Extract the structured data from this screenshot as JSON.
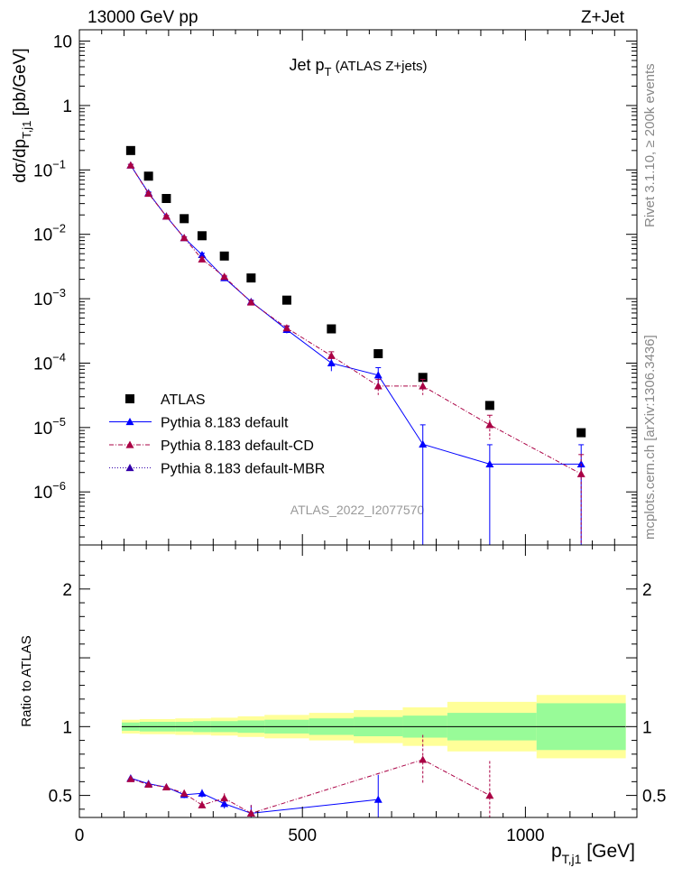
{
  "header": {
    "left": "13000 GeV pp",
    "right": "Z+Jet"
  },
  "side_labels": {
    "rivet": "Rivet 3.1.10, ≥ 200k events",
    "mcplots": "mcplots.cern.ch [arXiv:1306.3436]"
  },
  "chart_data": [
    {
      "type": "scatter",
      "panel": "main",
      "title": "Jet p_T (ATLAS Z+jets)",
      "title_parts": {
        "main": "Jet p",
        "sub": "T",
        "rest": " (ATLAS Z+jets)"
      },
      "watermark": "ATLAS_2022_I2077570",
      "ylabel_parts": {
        "a": "dσ/dp",
        "sub": "T,j1",
        "b": " [pb/GeV]"
      },
      "y_scale": "log",
      "ylim": [
        1.5e-07,
        15
      ],
      "xlim": [
        0,
        1250
      ],
      "y_tick_labels": [
        {
          "v": 10,
          "label": "10"
        },
        {
          "v": 1,
          "label": "1"
        },
        {
          "v": 0.1,
          "label": "10",
          "exp": "−1"
        },
        {
          "v": 0.01,
          "label": "10",
          "exp": "−2"
        },
        {
          "v": 0.001,
          "label": "10",
          "exp": "−3"
        },
        {
          "v": 0.0001,
          "label": "10",
          "exp": "−4"
        },
        {
          "v": 1e-05,
          "label": "10",
          "exp": "−5"
        },
        {
          "v": 1e-06,
          "label": "10",
          "exp": "−6"
        }
      ],
      "legend_position": "bottom-left",
      "series": [
        {
          "name": "ATLAS",
          "style": "data",
          "color": "#000000",
          "x": [
            115,
            155,
            195,
            235,
            275,
            325,
            385,
            465,
            565,
            670,
            770,
            920,
            1125
          ],
          "y": [
            0.2,
            0.08,
            0.036,
            0.0175,
            0.0095,
            0.0046,
            0.0021,
            0.00095,
            0.00034,
            0.00014,
            6e-05,
            2.2e-05,
            8.3e-06
          ]
        },
        {
          "name": "Pythia 8.183 default",
          "style": "solid",
          "color": "#0000ff",
          "x": [
            115,
            155,
            195,
            235,
            275,
            325,
            385,
            465,
            565,
            670,
            770,
            920,
            1125
          ],
          "y": [
            0.118,
            0.044,
            0.019,
            0.0088,
            0.0048,
            0.0021,
            0.0009,
            0.00033,
            0.0001,
            6.5e-05,
            5.5e-06,
            2.7e-06,
            2.7e-06
          ],
          "err": [
            0.004,
            0.0015,
            0.0006,
            0.0003,
            0.0003,
            0.0001,
            5e-05,
            4e-05,
            2.5e-05,
            2e-05,
            5.5e-06,
            2.7e-06,
            2.7e-06
          ]
        },
        {
          "name": "Pythia 8.183 default-CD",
          "style": "dashdot",
          "color": "#aa0044",
          "x": [
            115,
            155,
            195,
            235,
            275,
            325,
            385,
            465,
            565,
            670,
            770,
            920,
            1125
          ],
          "y": [
            0.118,
            0.043,
            0.019,
            0.0088,
            0.0041,
            0.0022,
            0.00088,
            0.00035,
            0.00013,
            4.4e-05,
            4.4e-05,
            1.1e-05,
            1.9e-06
          ],
          "err": [
            0.004,
            0.0015,
            0.0006,
            0.0003,
            0.0003,
            0.0001,
            5e-05,
            3e-05,
            2e-05,
            1.2e-05,
            1.2e-05,
            4.5e-06,
            1.9e-06
          ]
        },
        {
          "name": "Pythia 8.183 default-MBR",
          "style": "dotted",
          "color": "#3300aa",
          "x": [],
          "y": []
        }
      ]
    },
    {
      "type": "scatter",
      "panel": "ratio",
      "ylabel": "Ratio to ATLAS",
      "xlabel_parts": {
        "a": "p",
        "sub": "T,j1",
        "b": " [GeV]"
      },
      "xlim": [
        0,
        1250
      ],
      "ylim": [
        0.34,
        2.32
      ],
      "x_tick_labels": [
        {
          "v": 0,
          "label": "0"
        },
        {
          "v": 500,
          "label": "500"
        },
        {
          "v": 1000,
          "label": "1000"
        }
      ],
      "y_tick_labels": [
        {
          "v": 2,
          "label": "2"
        },
        {
          "v": 1,
          "label": "1"
        },
        {
          "v": 0.5,
          "label": "0.5"
        }
      ],
      "bands": {
        "edges": [
          95,
          135,
          175,
          215,
          255,
          295,
          355,
          415,
          515,
          615,
          725,
          825,
          1025,
          1225
        ],
        "stat": [
          0.03,
          0.035,
          0.035,
          0.035,
          0.04,
          0.04,
          0.045,
          0.05,
          0.06,
          0.07,
          0.08,
          0.1,
          0.17
        ],
        "total": [
          0.05,
          0.055,
          0.055,
          0.06,
          0.06,
          0.065,
          0.075,
          0.085,
          0.1,
          0.12,
          0.14,
          0.18,
          0.23
        ],
        "stat_color": "#98fb98",
        "total_color": "#ffff99"
      },
      "series": [
        {
          "name": "Pythia 8.183 default",
          "color": "#0000ff",
          "x": [
            115,
            155,
            195,
            235,
            275,
            325,
            385,
            670
          ],
          "y": [
            0.625,
            0.585,
            0.56,
            0.505,
            0.515,
            0.44,
            0.37,
            0.47
          ],
          "err": [
            0.015,
            0.02,
            0.02,
            0.025,
            0.03,
            0.035,
            0.06,
            0.18
          ]
        },
        {
          "name": "Pythia 8.183 default-CD",
          "color": "#aa0044",
          "x": [
            115,
            155,
            195,
            235,
            275,
            325,
            385,
            770,
            920
          ],
          "y": [
            0.62,
            0.58,
            0.56,
            0.515,
            0.43,
            0.48,
            0.37,
            0.76,
            0.5
          ],
          "err": [
            0.015,
            0.02,
            0.02,
            0.025,
            0.03,
            0.035,
            0.06,
            0.18,
            0.25
          ]
        }
      ]
    }
  ]
}
